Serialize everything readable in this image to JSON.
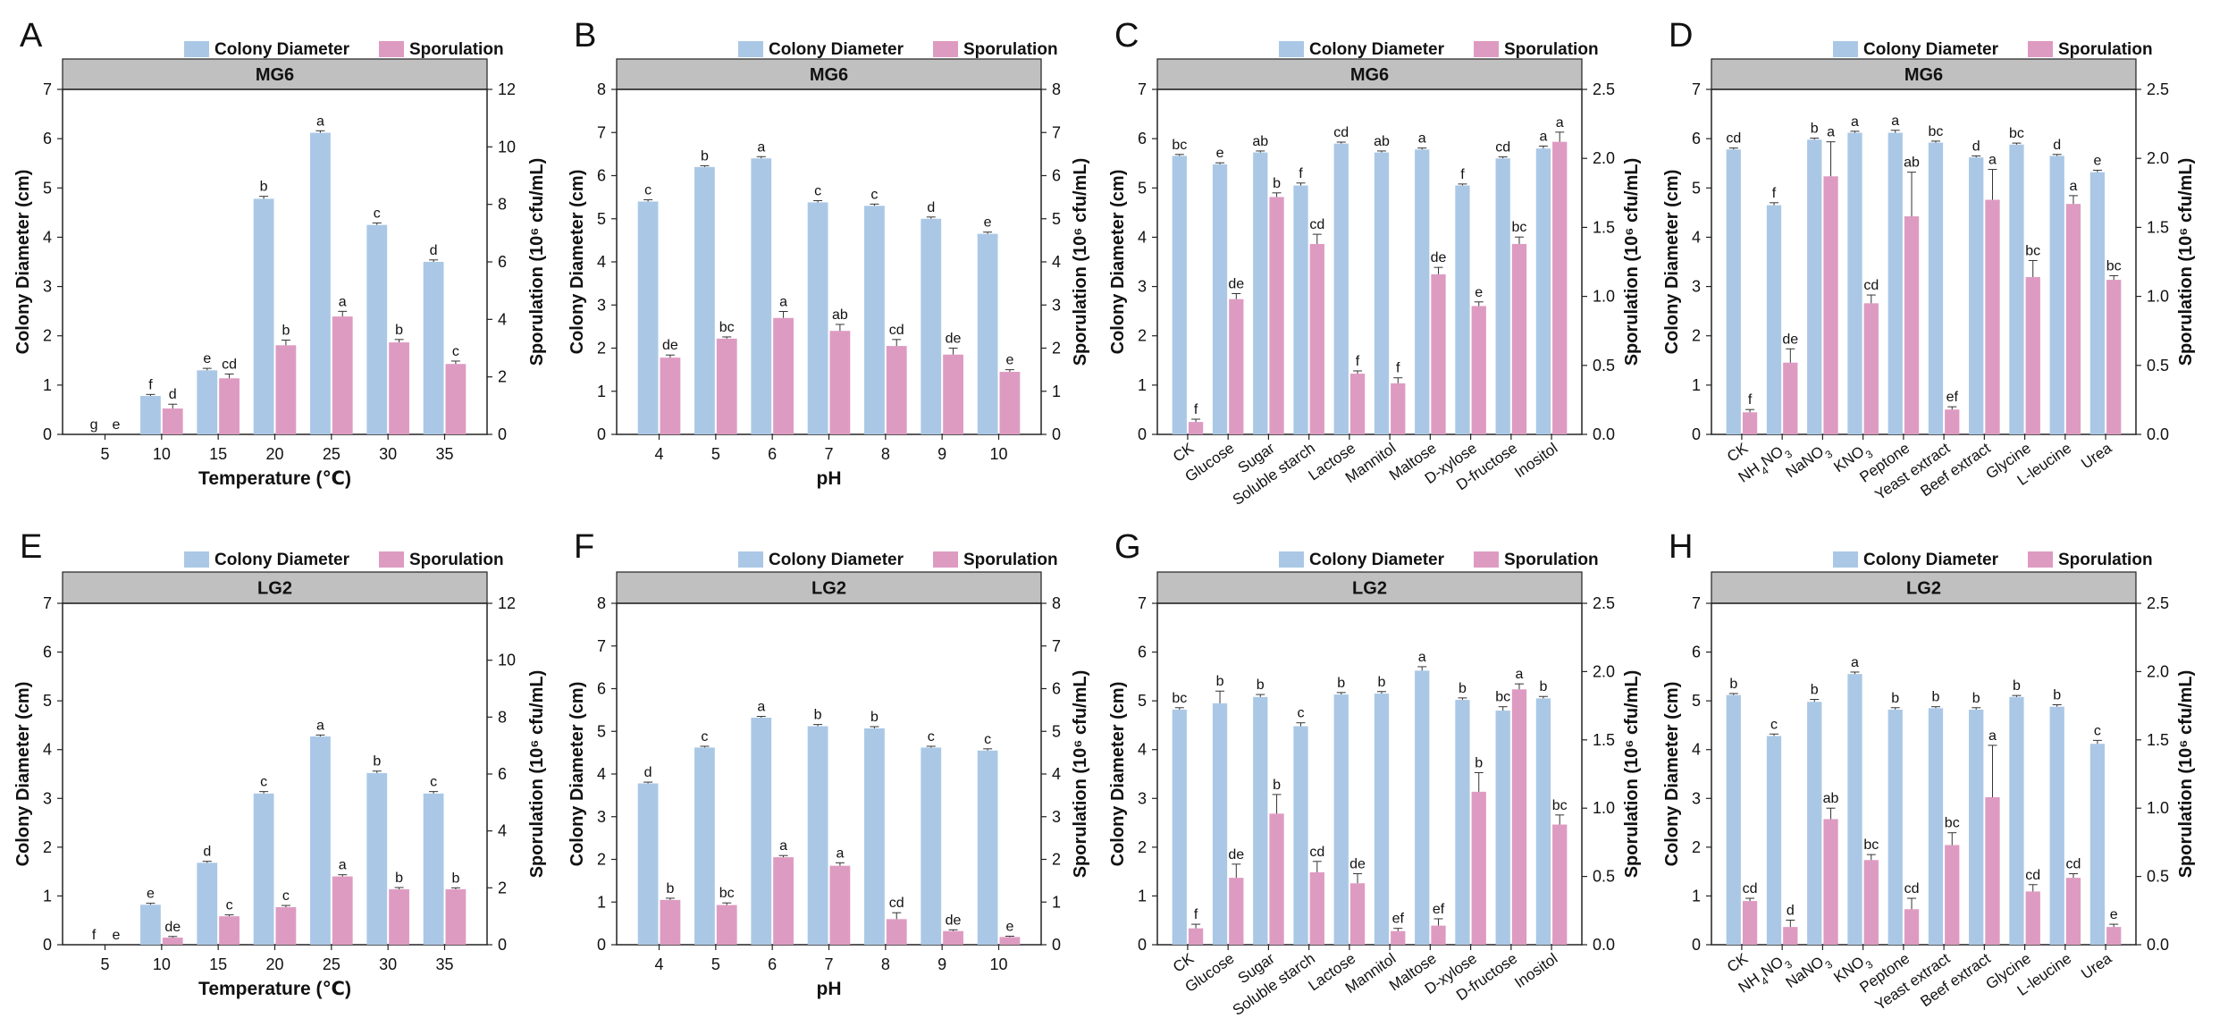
{
  "figure": {
    "legend_diameter": "Colony Diameter",
    "legend_sporulation": "Sporulation",
    "colors": {
      "diameter": "#aac8e6",
      "sporulation": "#de9bc2",
      "strip": "#c0c0c0",
      "errbar": "#333333"
    }
  },
  "chart_data": [
    {
      "panel": "A",
      "strain": "MG6",
      "type": "bar",
      "xlabel": "Temperature (℃)",
      "ylabel": "Colony Diameter (cm)",
      "y2label": "Sporulation (10⁶ cfu/mL)",
      "ylim": [
        0,
        7
      ],
      "y2lim": [
        0,
        12
      ],
      "yticks": [
        "0",
        "1",
        "2",
        "3",
        "4",
        "5",
        "6",
        "7"
      ],
      "y2ticks": [
        "0",
        "2",
        "4",
        "6",
        "8",
        "10",
        "12"
      ],
      "rotate": false,
      "categories": [
        "5",
        "10",
        "15",
        "20",
        "25",
        "30",
        "35"
      ],
      "series": [
        {
          "name": "Colony Diameter",
          "values": [
            0,
            0.78,
            1.3,
            4.78,
            6.12,
            4.25,
            3.5
          ],
          "err": [
            0,
            0.03,
            0.04,
            0.05,
            0.04,
            0.04,
            0.04
          ],
          "letters": [
            "g",
            "f",
            "e",
            "b",
            "a",
            "c",
            "d"
          ]
        },
        {
          "name": "Sporulation",
          "values": [
            0,
            0.9,
            1.95,
            3.1,
            4.1,
            3.2,
            2.45
          ],
          "err": [
            0,
            0.15,
            0.15,
            0.18,
            0.18,
            0.1,
            0.1
          ],
          "letters": [
            "e",
            "d",
            "cd",
            "b",
            "a",
            "b",
            "c"
          ]
        }
      ]
    },
    {
      "panel": "B",
      "strain": "MG6",
      "type": "bar",
      "xlabel": "pH",
      "ylabel": "Colony Diameter (cm)",
      "y2label": "Sporulation (10⁶ cfu/mL)",
      "ylim": [
        0,
        8
      ],
      "y2lim": [
        0,
        8
      ],
      "yticks": [
        "0",
        "1",
        "2",
        "3",
        "4",
        "5",
        "6",
        "7",
        "8"
      ],
      "y2ticks": [
        "0",
        "1",
        "2",
        "3",
        "4",
        "5",
        "6",
        "7",
        "8"
      ],
      "rotate": false,
      "categories": [
        "4",
        "5",
        "6",
        "7",
        "8",
        "9",
        "10"
      ],
      "series": [
        {
          "name": "Colony Diameter",
          "values": [
            5.4,
            6.2,
            6.4,
            5.38,
            5.3,
            5.0,
            4.65
          ],
          "err": [
            0.04,
            0.03,
            0.04,
            0.04,
            0.04,
            0.04,
            0.04
          ],
          "letters": [
            "c",
            "b",
            "a",
            "c",
            "c",
            "d",
            "e"
          ]
        },
        {
          "name": "Sporulation",
          "values": [
            1.78,
            2.22,
            2.7,
            2.4,
            2.05,
            1.85,
            1.45
          ],
          "err": [
            0.06,
            0.04,
            0.15,
            0.15,
            0.15,
            0.15,
            0.05
          ],
          "letters": [
            "de",
            "bc",
            "a",
            "ab",
            "cd",
            "de",
            "e"
          ]
        }
      ]
    },
    {
      "panel": "C",
      "strain": "MG6",
      "type": "bar",
      "xlabel": "",
      "ylabel": "Colony Diameter (cm)",
      "y2label": "Sporulation (10⁶ cfu/mL)",
      "ylim": [
        0,
        7
      ],
      "y2lim": [
        0,
        2.5
      ],
      "yticks": [
        "0",
        "1",
        "2",
        "3",
        "4",
        "5",
        "6",
        "7"
      ],
      "y2ticks": [
        "0.0",
        "0.5",
        "1.0",
        "1.5",
        "2.0",
        "2.5"
      ],
      "rotate": true,
      "categories": [
        "CK",
        "Glucose",
        "Sugar",
        "Soluble starch",
        "Lactose",
        "Mannitol",
        "Maltose",
        "D-xylose",
        "D-fructose",
        "Inositol"
      ],
      "series": [
        {
          "name": "Colony Diameter",
          "values": [
            5.65,
            5.48,
            5.72,
            5.05,
            5.9,
            5.72,
            5.78,
            5.05,
            5.6,
            5.8
          ],
          "err": [
            0.03,
            0.03,
            0.03,
            0.05,
            0.03,
            0.03,
            0.03,
            0.03,
            0.03,
            0.05
          ],
          "letters": [
            "bc",
            "e",
            "ab",
            "f",
            "cd",
            "ab",
            "a",
            "f",
            "cd",
            "a"
          ]
        },
        {
          "name": "Sporulation",
          "values": [
            0.09,
            0.98,
            1.72,
            1.38,
            0.44,
            0.37,
            1.16,
            0.93,
            1.38,
            2.12
          ],
          "err": [
            0.02,
            0.04,
            0.03,
            0.07,
            0.02,
            0.04,
            0.05,
            0.03,
            0.05,
            0.07
          ],
          "letters": [
            "f",
            "de",
            "b",
            "cd",
            "f",
            "f",
            "de",
            "e",
            "bc",
            "a"
          ]
        }
      ]
    },
    {
      "panel": "D",
      "strain": "MG6",
      "type": "bar",
      "xlabel": "",
      "ylabel": "Colony Diameter (cm)",
      "y2label": "Sporulation (10⁶ cfu/mL)",
      "ylim": [
        0,
        7
      ],
      "y2lim": [
        0,
        2.5
      ],
      "yticks": [
        "0",
        "1",
        "2",
        "3",
        "4",
        "5",
        "6",
        "7"
      ],
      "y2ticks": [
        "0.0",
        "0.5",
        "1.0",
        "1.5",
        "2.0",
        "2.5"
      ],
      "rotate": true,
      "categories": [
        "CK",
        "NH4NO3",
        "NaNO3",
        "KNO3",
        "Peptone",
        "Yeast extract",
        "Beef extract",
        "Glycine",
        "L-leucine",
        "Urea"
      ],
      "series": [
        {
          "name": "Colony Diameter",
          "values": [
            5.78,
            4.65,
            5.98,
            6.12,
            6.12,
            5.92,
            5.62,
            5.88,
            5.65,
            5.32
          ],
          "err": [
            0.03,
            0.05,
            0.03,
            0.03,
            0.05,
            0.03,
            0.03,
            0.03,
            0.03,
            0.04
          ],
          "letters": [
            "cd",
            "f",
            "b",
            "a",
            "a",
            "bc",
            "d",
            "bc",
            "d",
            "e"
          ]
        },
        {
          "name": "Sporulation",
          "values": [
            0.16,
            0.52,
            1.87,
            0.95,
            1.58,
            0.18,
            1.7,
            1.14,
            1.67,
            1.12
          ],
          "err": [
            0.02,
            0.1,
            0.25,
            0.06,
            0.32,
            0.02,
            0.22,
            0.12,
            0.06,
            0.03
          ],
          "letters": [
            "f",
            "de",
            "a",
            "cd",
            "ab",
            "ef",
            "a",
            "bc",
            "a",
            "bc"
          ]
        }
      ]
    },
    {
      "panel": "E",
      "strain": "LG2",
      "type": "bar",
      "xlabel": "Temperature (℃)",
      "ylabel": "Colony Diameter (cm)",
      "y2label": "Sporulation (10⁶ cfu/mL)",
      "ylim": [
        0,
        7
      ],
      "y2lim": [
        0,
        12
      ],
      "yticks": [
        "0",
        "1",
        "2",
        "3",
        "4",
        "5",
        "6",
        "7"
      ],
      "y2ticks": [
        "0",
        "2",
        "4",
        "6",
        "8",
        "10",
        "12"
      ],
      "rotate": false,
      "categories": [
        "5",
        "10",
        "15",
        "20",
        "25",
        "30",
        "35"
      ],
      "series": [
        {
          "name": "Colony Diameter",
          "values": [
            0,
            0.82,
            1.68,
            3.1,
            4.27,
            3.52,
            3.1
          ],
          "err": [
            0,
            0.03,
            0.03,
            0.04,
            0.03,
            0.04,
            0.04
          ],
          "letters": [
            "f",
            "e",
            "d",
            "c",
            "a",
            "b",
            "c"
          ]
        },
        {
          "name": "Sporulation",
          "values": [
            0,
            0.25,
            1.0,
            1.32,
            2.4,
            1.95,
            1.95
          ],
          "err": [
            0,
            0.04,
            0.05,
            0.06,
            0.06,
            0.06,
            0.05
          ],
          "letters": [
            "e",
            "de",
            "c",
            "c",
            "a",
            "b",
            "b"
          ]
        }
      ]
    },
    {
      "panel": "F",
      "strain": "LG2",
      "type": "bar",
      "xlabel": "pH",
      "ylabel": "Colony Diameter (cm)",
      "y2label": "Sporulation (10⁶ cfu/mL)",
      "ylim": [
        0,
        8
      ],
      "y2lim": [
        0,
        8
      ],
      "yticks": [
        "0",
        "1",
        "2",
        "3",
        "4",
        "5",
        "6",
        "7",
        "8"
      ],
      "y2ticks": [
        "0",
        "1",
        "2",
        "3",
        "4",
        "5",
        "6",
        "7",
        "8"
      ],
      "rotate": false,
      "categories": [
        "4",
        "5",
        "6",
        "7",
        "8",
        "9",
        "10"
      ],
      "series": [
        {
          "name": "Colony Diameter",
          "values": [
            3.78,
            4.62,
            5.32,
            5.12,
            5.07,
            4.62,
            4.55
          ],
          "err": [
            0.03,
            0.03,
            0.03,
            0.04,
            0.04,
            0.03,
            0.04
          ],
          "letters": [
            "d",
            "c",
            "a",
            "b",
            "b",
            "c",
            "c"
          ]
        },
        {
          "name": "Sporulation",
          "values": [
            1.05,
            0.93,
            2.05,
            1.85,
            0.6,
            0.32,
            0.18
          ],
          "err": [
            0.04,
            0.05,
            0.04,
            0.07,
            0.15,
            0.03,
            0.02
          ],
          "letters": [
            "b",
            "bc",
            "a",
            "a",
            "cd",
            "de",
            "e"
          ]
        }
      ]
    },
    {
      "panel": "G",
      "strain": "LG2",
      "type": "bar",
      "xlabel": "",
      "ylabel": "Colony Diameter (cm)",
      "y2label": "Sporulation (10⁶ cfu/mL)",
      "ylim": [
        0,
        7
      ],
      "y2lim": [
        0,
        2.5
      ],
      "yticks": [
        "0",
        "1",
        "2",
        "3",
        "4",
        "5",
        "6",
        "7"
      ],
      "y2ticks": [
        "0.0",
        "0.5",
        "1.0",
        "1.5",
        "2.0",
        "2.5"
      ],
      "rotate": true,
      "categories": [
        "CK",
        "Glucose",
        "Sugar",
        "Soluble starch",
        "Lactose",
        "Mannitol",
        "Maltose",
        "D-xylose",
        "D-fructose",
        "Inositol"
      ],
      "series": [
        {
          "name": "Colony Diameter",
          "values": [
            4.82,
            4.95,
            5.08,
            4.48,
            5.13,
            5.15,
            5.62,
            5.02,
            4.8,
            5.05
          ],
          "err": [
            0.04,
            0.25,
            0.05,
            0.07,
            0.04,
            0.04,
            0.08,
            0.04,
            0.08,
            0.04
          ],
          "letters": [
            "bc",
            "b",
            "b",
            "c",
            "b",
            "b",
            "a",
            "b",
            "bc",
            "b"
          ]
        },
        {
          "name": "Sporulation",
          "values": [
            0.12,
            0.49,
            0.96,
            0.53,
            0.45,
            0.1,
            0.14,
            1.12,
            1.87,
            0.88
          ],
          "err": [
            0.03,
            0.1,
            0.14,
            0.08,
            0.07,
            0.02,
            0.05,
            0.14,
            0.04,
            0.07
          ],
          "letters": [
            "f",
            "de",
            "b",
            "cd",
            "de",
            "ef",
            "ef",
            "b",
            "a",
            "bc"
          ]
        }
      ]
    },
    {
      "panel": "H",
      "strain": "LG2",
      "type": "bar",
      "xlabel": "",
      "ylabel": "Colony Diameter (cm)",
      "y2label": "Sporulation (10⁶ cfu/mL)",
      "ylim": [
        0,
        7
      ],
      "y2lim": [
        0,
        2.5
      ],
      "yticks": [
        "0",
        "1",
        "2",
        "3",
        "4",
        "5",
        "6",
        "7"
      ],
      "y2ticks": [
        "0.0",
        "0.5",
        "1.0",
        "1.5",
        "2.0",
        "2.5"
      ],
      "rotate": true,
      "categories": [
        "CK",
        "NH4NO3",
        "NaNO3",
        "KNO3",
        "Peptone",
        "Yeast extract",
        "Beef extract",
        "Glycine",
        "L-leucine",
        "Urea"
      ],
      "series": [
        {
          "name": "Colony Diameter",
          "values": [
            5.12,
            4.28,
            4.98,
            5.55,
            4.82,
            4.85,
            4.82,
            5.08,
            4.88,
            4.12
          ],
          "err": [
            0.03,
            0.04,
            0.05,
            0.04,
            0.04,
            0.03,
            0.04,
            0.03,
            0.04,
            0.07
          ],
          "letters": [
            "b",
            "c",
            "b",
            "a",
            "b",
            "b",
            "b",
            "b",
            "b",
            "c"
          ]
        },
        {
          "name": "Sporulation",
          "values": [
            0.32,
            0.13,
            0.92,
            0.62,
            0.26,
            0.73,
            1.08,
            0.39,
            0.49,
            0.13
          ],
          "err": [
            0.02,
            0.05,
            0.08,
            0.04,
            0.08,
            0.09,
            0.38,
            0.05,
            0.03,
            0.02
          ],
          "letters": [
            "cd",
            "d",
            "ab",
            "bc",
            "cd",
            "bc",
            "a",
            "cd",
            "cd",
            "e"
          ]
        }
      ]
    }
  ]
}
